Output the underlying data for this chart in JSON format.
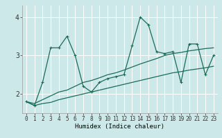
{
  "title": "",
  "xlabel": "Humidex (Indice chaleur)",
  "xlim": [
    -0.5,
    23.5
  ],
  "ylim": [
    1.5,
    4.3
  ],
  "yticks": [
    2,
    3,
    4
  ],
  "xticks": [
    0,
    1,
    2,
    3,
    4,
    5,
    6,
    7,
    8,
    9,
    10,
    11,
    12,
    13,
    14,
    15,
    16,
    17,
    18,
    19,
    20,
    21,
    22,
    23
  ],
  "bg_color": "#cce8e8",
  "grid_color": "#ffffff",
  "line_color": "#1a6b5a",
  "x": [
    0,
    1,
    2,
    3,
    4,
    5,
    6,
    7,
    8,
    9,
    10,
    11,
    12,
    13,
    14,
    15,
    16,
    17,
    18,
    19,
    20,
    21,
    22,
    23
  ],
  "line1": [
    1.8,
    1.7,
    2.3,
    3.2,
    3.2,
    3.5,
    3.0,
    2.2,
    2.05,
    2.3,
    2.4,
    2.45,
    2.5,
    3.25,
    4.0,
    3.8,
    3.1,
    3.05,
    3.1,
    2.3,
    3.3,
    3.3,
    2.5,
    3.0
  ],
  "line2": [
    1.8,
    1.75,
    1.85,
    1.95,
    2.05,
    2.1,
    2.2,
    2.3,
    2.35,
    2.42,
    2.5,
    2.55,
    2.62,
    2.7,
    2.78,
    2.85,
    2.92,
    3.0,
    3.05,
    3.08,
    3.12,
    3.15,
    3.18,
    3.2
  ],
  "line3": [
    1.8,
    1.7,
    1.75,
    1.78,
    1.85,
    1.9,
    1.95,
    2.0,
    2.05,
    2.1,
    2.15,
    2.2,
    2.25,
    2.3,
    2.35,
    2.4,
    2.45,
    2.5,
    2.55,
    2.58,
    2.62,
    2.65,
    2.68,
    2.72
  ],
  "xlabel_fontsize": 6.5,
  "tick_fontsize": 5.5,
  "ytick_fontsize": 7
}
